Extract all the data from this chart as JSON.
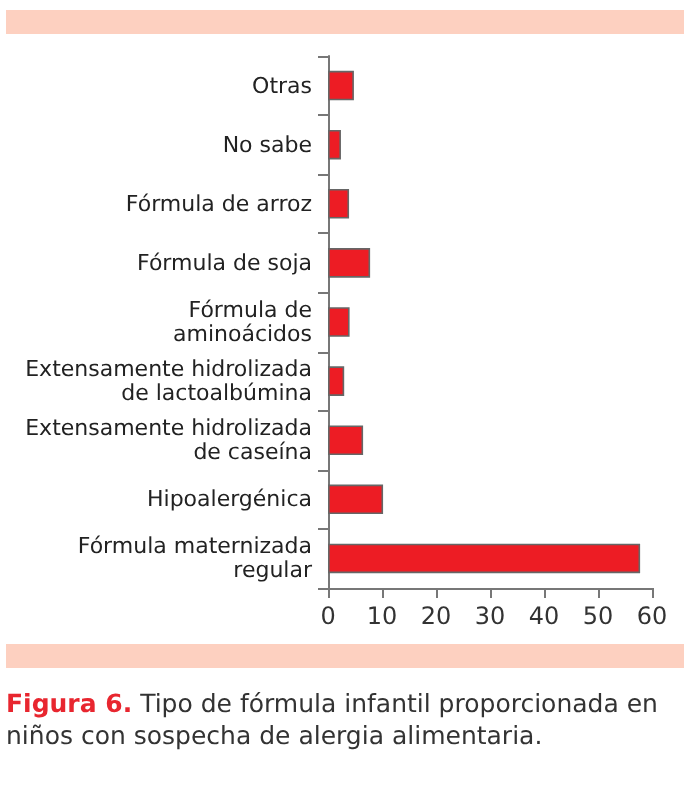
{
  "chart_data": {
    "type": "bar",
    "orientation": "horizontal",
    "title": "Figura 6.",
    "subtitle": "Tipo de fórmula infantil proporcionada en niños con sospecha de alergia alimentaria.",
    "categories": [
      "Otras",
      "No sabe",
      "Fórmula de arroz",
      "Fórmula de soja",
      "Fórmula de\naminoácidos",
      "Extensamente hidrolizada\nde lactoalbúmina",
      "Extensamente hidrolizada\nde caseína",
      "Hipoalergénica",
      "Fórmula maternizada\nregular"
    ],
    "values": [
      4.8,
      2.4,
      3.9,
      7.8,
      4,
      3,
      6.5,
      10.2,
      57.8
    ],
    "color": "#ed1c24",
    "xlim": [
      0,
      60
    ],
    "xticks": [
      0,
      10,
      20,
      30,
      40,
      50,
      60
    ],
    "grid": false
  }
}
